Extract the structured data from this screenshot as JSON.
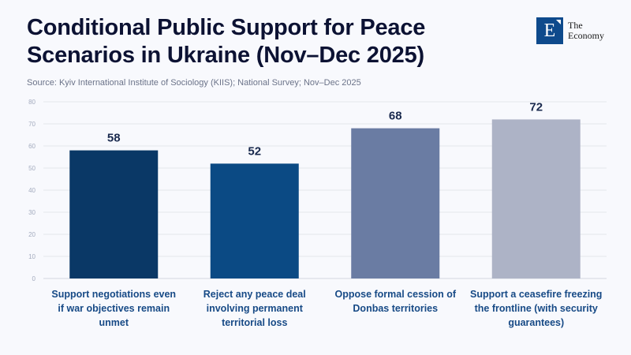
{
  "header": {
    "title": "Conditional Public Support for Peace Scenarios in Ukraine (Nov–Dec 2025)",
    "source": "Source: Kyiv International Institute of Sociology (KIIS); National Survey; Nov–Dec 2025"
  },
  "logo": {
    "letter": "E",
    "line1": "The",
    "line2": "Economy"
  },
  "chart_data": {
    "type": "bar",
    "title": "Conditional Public Support for Peace Scenarios in Ukraine (Nov–Dec 2025)",
    "xlabel": "",
    "ylabel": "",
    "ylim": [
      0,
      80
    ],
    "yticks": [
      0,
      10,
      20,
      30,
      40,
      50,
      60,
      70,
      80
    ],
    "grid": true,
    "categories": [
      "Support negotiations even if war objectives remain unmet",
      "Reject any peace deal involving permanent territorial loss",
      "Oppose formal cession of Donbas territories",
      "Support a ceasefire freezing the frontline (with security guarantees)"
    ],
    "values": [
      58,
      52,
      68,
      72
    ],
    "colors": [
      "#0a3866",
      "#0b4a84",
      "#6a7ca3",
      "#adb3c6"
    ]
  }
}
